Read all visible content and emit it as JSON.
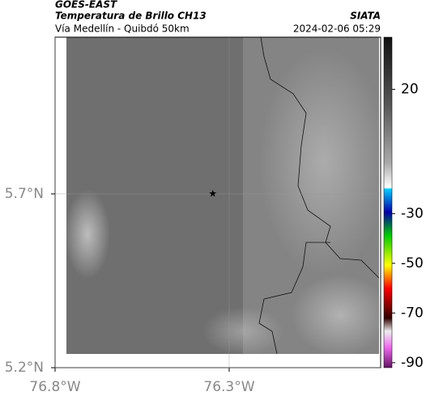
{
  "header": {
    "title": "GOES-EAST",
    "subtitle": "Temperatura de Brillo CH13",
    "route": "Vía Medellín - Quibdó 50km",
    "source": "SIATA",
    "datetime": "2024-02-06 05:29"
  },
  "map": {
    "xlim": [
      -76.8,
      -75.865
    ],
    "ylim": [
      5.2,
      6.151
    ],
    "xticks": [
      {
        "value": -76.8,
        "label": "76.8°W"
      },
      {
        "value": -76.3,
        "label": "76.3°W"
      }
    ],
    "yticks": [
      {
        "value": 5.7,
        "label": "5.7°N"
      },
      {
        "value": 5.2,
        "label": "5.2°N"
      }
    ],
    "marker": {
      "lon": -76.347,
      "lat": 5.7
    }
  },
  "colorbar": {
    "lim": [
      -92,
      41
    ],
    "ticks": [
      20,
      -30,
      -50,
      -70,
      -90
    ]
  }
}
